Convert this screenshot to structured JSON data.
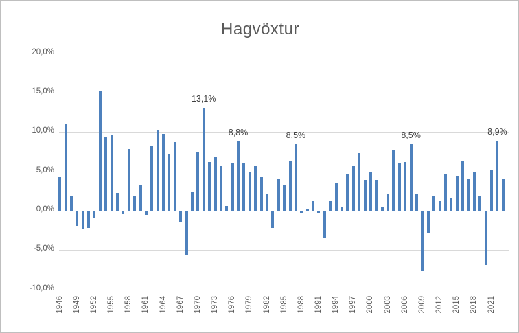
{
  "chart_data": {
    "type": "bar",
    "title": "Hagvöxtur",
    "xlabel": "",
    "ylabel": "",
    "ylim": [
      -10,
      20
    ],
    "y_tick_step": 5,
    "grid": true,
    "legend": "none",
    "y_ticks": [
      {
        "value": 20,
        "label": "20,0%"
      },
      {
        "value": 15,
        "label": "15,0%"
      },
      {
        "value": 10,
        "label": "10,0%"
      },
      {
        "value": 5,
        "label": "5,0%"
      },
      {
        "value": 0,
        "label": "0,0%"
      },
      {
        "value": -5,
        "label": "-5,0%"
      },
      {
        "value": -10,
        "label": "-10,0%"
      }
    ],
    "x_ticks": [
      "1946",
      "1949",
      "1952",
      "1955",
      "1958",
      "1961",
      "1964",
      "1967",
      "1970",
      "1973",
      "1976",
      "1979",
      "1982",
      "1985",
      "1988",
      "1991",
      "1994",
      "1997",
      "2000",
      "2003",
      "2006",
      "2009",
      "2012",
      "2015",
      "2018",
      "2021"
    ],
    "years": [
      1946,
      1947,
      1948,
      1949,
      1950,
      1951,
      1952,
      1953,
      1954,
      1955,
      1956,
      1957,
      1958,
      1959,
      1960,
      1961,
      1962,
      1963,
      1964,
      1965,
      1966,
      1967,
      1968,
      1969,
      1970,
      1971,
      1972,
      1973,
      1974,
      1975,
      1976,
      1977,
      1978,
      1979,
      1980,
      1981,
      1982,
      1983,
      1984,
      1985,
      1986,
      1987,
      1988,
      1989,
      1990,
      1991,
      1992,
      1993,
      1994,
      1995,
      1996,
      1997,
      1998,
      1999,
      2000,
      2001,
      2002,
      2003,
      2004,
      2005,
      2006,
      2007,
      2008,
      2009,
      2010,
      2011,
      2012,
      2013,
      2014,
      2015,
      2016,
      2017,
      2018,
      2019,
      2020,
      2021,
      2022,
      2023
    ],
    "values": [
      4.3,
      11.0,
      1.9,
      -1.8,
      -2.2,
      -2.1,
      -0.9,
      15.3,
      9.3,
      9.6,
      2.3,
      -0.3,
      7.9,
      1.9,
      3.2,
      -0.4,
      8.2,
      10.2,
      9.8,
      7.2,
      8.7,
      -1.4,
      -5.5,
      2.4,
      7.5,
      13.1,
      6.2,
      6.8,
      5.7,
      0.6,
      6.1,
      8.8,
      6.0,
      4.9,
      5.7,
      4.3,
      2.2,
      -2.1,
      4.0,
      3.3,
      6.3,
      8.5,
      -0.2,
      0.3,
      1.2,
      -0.2,
      -3.4,
      1.2,
      3.6,
      0.5,
      4.6,
      5.7,
      7.3,
      3.9,
      4.9,
      3.9,
      0.4,
      2.1,
      7.8,
      6.0,
      6.2,
      8.5,
      2.2,
      -7.5,
      -2.8,
      1.9,
      1.2,
      4.6,
      1.7,
      4.4,
      6.3,
      4.1,
      4.9,
      1.9,
      -6.8,
      5.2,
      8.9,
      4.1
    ],
    "point_labels": [
      {
        "year": 1971,
        "label": "13,1%"
      },
      {
        "year": 1977,
        "label": "8,8%"
      },
      {
        "year": 1987,
        "label": "8,5%"
      },
      {
        "year": 2007,
        "label": "8,5%"
      },
      {
        "year": 2022,
        "label": "8,9%"
      }
    ],
    "colors": {
      "bar": "#4E81BD",
      "gridline": "#D9D9D9",
      "axis_line": "#BFBFBF",
      "tick_text": "#595959",
      "title_text": "#595959",
      "point_label_text": "#404040",
      "chart_border": "#BFBFBF"
    }
  }
}
